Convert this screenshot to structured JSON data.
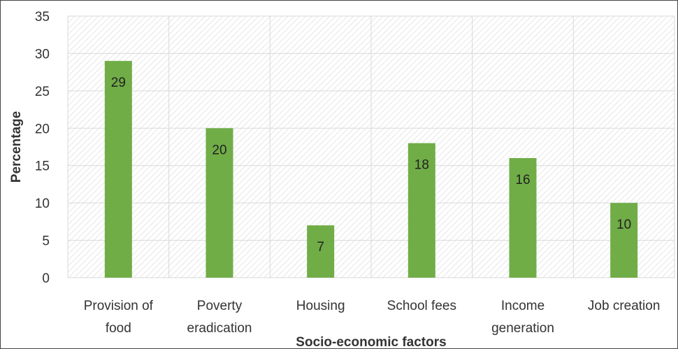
{
  "chart_data": {
    "type": "bar",
    "title": "",
    "xlabel": "Socio-economic factors",
    "ylabel": "Percentage",
    "categories": [
      [
        "Provision of",
        "food"
      ],
      [
        "Poverty",
        "eradication"
      ],
      [
        "Housing"
      ],
      [
        "School fees"
      ],
      [
        "Income",
        "generation"
      ],
      [
        "Job creation"
      ]
    ],
    "values": [
      29,
      20,
      7,
      18,
      16,
      10
    ],
    "ylim": [
      0,
      35
    ],
    "yticks": [
      0,
      5,
      10,
      15,
      20,
      25,
      30,
      35
    ],
    "grid": true,
    "data_labels": true,
    "legend": "none",
    "colors": {
      "bar": "#70ad47",
      "grid": "#d9d9d9",
      "plot_hatch": "#e6e6e6",
      "text": "#333333"
    }
  }
}
